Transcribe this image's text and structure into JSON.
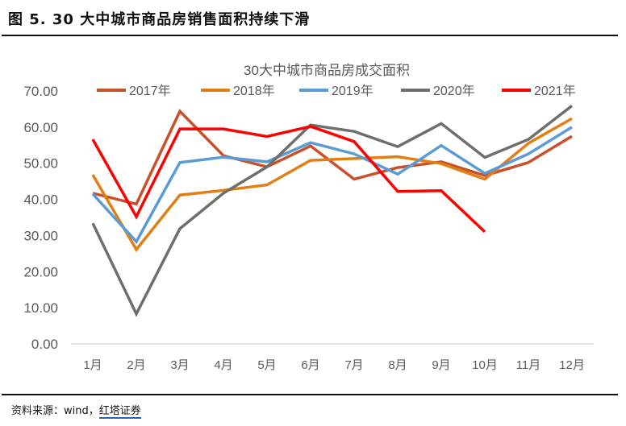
{
  "figure": {
    "title": "图 5. 30 大中城市商品房销售面积持续下滑",
    "source_prefix": "资料来源：wind，",
    "source_link": "红塔证券"
  },
  "chart_data": {
    "type": "line",
    "title": "30大中城市商品房成交面积",
    "xlabel": "",
    "ylabel": "",
    "categories": [
      "1月",
      "2月",
      "3月",
      "4月",
      "5月",
      "6月",
      "7月",
      "8月",
      "9月",
      "10月",
      "11月",
      "12月"
    ],
    "ylim": [
      0,
      70
    ],
    "yticks": [
      "0.00",
      "10.00",
      "20.00",
      "30.00",
      "40.00",
      "50.00",
      "60.00",
      "70.00"
    ],
    "grid": false,
    "legend_position": "top",
    "series": [
      {
        "name": "2017年",
        "color": "#C9502A",
        "values": [
          41.7,
          38.7,
          64.4,
          52.1,
          49.0,
          54.8,
          45.6,
          48.8,
          50.4,
          46.6,
          50.2,
          57.5
        ]
      },
      {
        "name": "2018年",
        "color": "#E07F14",
        "values": [
          46.8,
          26.1,
          41.2,
          42.5,
          44.0,
          50.8,
          51.3,
          51.8,
          49.9,
          45.6,
          55.5,
          62.4
        ]
      },
      {
        "name": "2019年",
        "color": "#5B9BD5",
        "values": [
          41.5,
          28.3,
          50.2,
          51.7,
          50.4,
          55.7,
          52.6,
          47.0,
          54.9,
          47.2,
          52.6,
          60.0
        ]
      },
      {
        "name": "2020年",
        "color": "#6E6E6A",
        "values": [
          33.4,
          8.3,
          31.9,
          41.7,
          49.0,
          60.6,
          58.8,
          54.6,
          61.0,
          51.6,
          56.6,
          65.9
        ]
      },
      {
        "name": "2021年",
        "color": "#FF0000",
        "values": [
          56.6,
          35.2,
          59.5,
          59.5,
          57.4,
          60.2,
          56.0,
          42.2,
          42.4,
          31.0,
          null,
          null
        ]
      }
    ]
  }
}
